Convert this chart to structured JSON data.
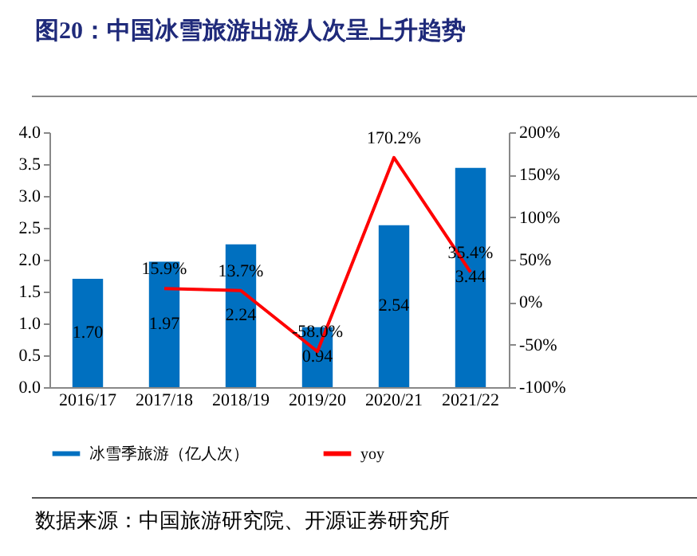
{
  "chart_data": {
    "type": "bar",
    "title": "图20：中国冰雪旅游出游人次呈上升趋势",
    "categories": [
      "2016/17",
      "2017/18",
      "2018/19",
      "2019/20",
      "2020/21",
      "2021/22"
    ],
    "series": [
      {
        "name": "冰雪季旅游（亿人次）",
        "color": "#0070c0",
        "values": [
          1.7,
          1.97,
          2.24,
          0.94,
          2.54,
          3.44
        ],
        "value_labels": [
          "1.70",
          "1.97",
          "2.24",
          "0.94",
          "2.54",
          "3.44"
        ]
      },
      {
        "name": "yoy",
        "type": "line",
        "axis": "y2",
        "color": "#ff0000",
        "values": [
          null,
          15.9,
          13.7,
          -58.0,
          170.2,
          35.4
        ],
        "value_labels": [
          null,
          "15.9%",
          "13.7%",
          "-58.0%",
          "170.2%",
          "35.4%"
        ]
      }
    ],
    "ylim": [
      0,
      4
    ],
    "yticks": [
      {
        "value": 0,
        "label": "0.0"
      },
      {
        "value": 0.5,
        "label": "0.5"
      },
      {
        "value": 1,
        "label": "1.0"
      },
      {
        "value": 1.5,
        "label": "1.5"
      },
      {
        "value": 2,
        "label": "2.0"
      },
      {
        "value": 2.5,
        "label": "2.5"
      },
      {
        "value": 3,
        "label": "3.0"
      },
      {
        "value": 3.5,
        "label": "3.5"
      },
      {
        "value": 4,
        "label": "4.0"
      }
    ],
    "y2lim": [
      -100,
      200
    ],
    "y2ticks": [
      {
        "value": -100,
        "label": "-100%"
      },
      {
        "value": -50,
        "label": "-50%"
      },
      {
        "value": 0,
        "label": "0%"
      },
      {
        "value": 50,
        "label": "50%"
      },
      {
        "value": 100,
        "label": "100%"
      },
      {
        "value": 150,
        "label": "150%"
      },
      {
        "value": 200,
        "label": "200%"
      }
    ],
    "grid": false,
    "legend": "bottom",
    "line_style": "solid",
    "marker": "none",
    "annotations": [
      "数据来源：中国旅游研究院、开源证券研究所"
    ]
  }
}
